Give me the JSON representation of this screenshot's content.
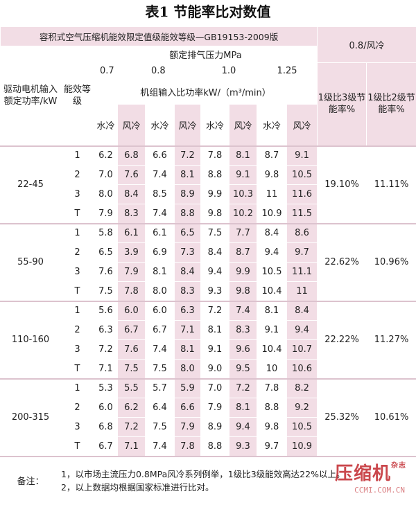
{
  "title": "表1 节能率比对数值",
  "header": {
    "main_caption": "容积式空气压缩机能效限定值级能效等级—GB19153-2009版",
    "motor_col": "驱动电机输入额定功率/kW",
    "grade_col": "能效等级",
    "pressure_caption": "额定排气压力MPa",
    "pressures": [
      "0.7",
      "0.8",
      "1.0",
      "1.25"
    ],
    "power_caption": "机组输入比功率kW/（m³/min）",
    "water": "水冷",
    "air": "风冷",
    "right_caption": "0.8/风冷",
    "ratio1": "1级比3级节能率%",
    "ratio2": "1级比2级节能率%"
  },
  "groups": [
    {
      "range": "22-45",
      "ratio1": "19.10%",
      "ratio2": "11.11%",
      "rows": [
        {
          "grade": "1",
          "v": [
            "6.2",
            "6.8",
            "6.6",
            "7.2",
            "7.8",
            "8.1",
            "8.7",
            "9.1"
          ]
        },
        {
          "grade": "2",
          "v": [
            "7.0",
            "7.6",
            "7.4",
            "8.1",
            "8.8",
            "9.1",
            "9.8",
            "10.5"
          ]
        },
        {
          "grade": "3",
          "v": [
            "8.0",
            "8.4",
            "8.5",
            "8.9",
            "9.9",
            "10.3",
            "11",
            "11.6"
          ]
        },
        {
          "grade": "T",
          "v": [
            "7.9",
            "8.3",
            "7.4",
            "8.8",
            "9.8",
            "10.2",
            "10.9",
            "11.5"
          ]
        }
      ]
    },
    {
      "range": "55-90",
      "ratio1": "22.62%",
      "ratio2": "10.96%",
      "rows": [
        {
          "grade": "1",
          "v": [
            "5.8",
            "6.1",
            "6.1",
            "6.5",
            "7.5",
            "7.7",
            "8.4",
            "8.6"
          ]
        },
        {
          "grade": "2",
          "v": [
            "6.5",
            "3.9",
            "6.9",
            "7.3",
            "8.4",
            "8.7",
            "9.4",
            "9.7"
          ]
        },
        {
          "grade": "3",
          "v": [
            "7.6",
            "7.9",
            "8.1",
            "8.4",
            "9.4",
            "9.9",
            "10.5",
            "11.1"
          ]
        },
        {
          "grade": "T",
          "v": [
            "7.5",
            "7.8",
            "8.0",
            "8.3",
            "9.3",
            "9.8",
            "10.4",
            "11"
          ]
        }
      ]
    },
    {
      "range": "110-160",
      "ratio1": "22.22%",
      "ratio2": "11.27%",
      "rows": [
        {
          "grade": "1",
          "v": [
            "5.6",
            "6.0",
            "6.0",
            "6.3",
            "7.2",
            "7.4",
            "8.1",
            "8.4"
          ]
        },
        {
          "grade": "2",
          "v": [
            "6.3",
            "6.7",
            "6.7",
            "7.1",
            "8.1",
            "8.3",
            "9.1",
            "9.4"
          ]
        },
        {
          "grade": "3",
          "v": [
            "7.2",
            "7.6",
            "7.4",
            "8.1",
            "9.1",
            "9.6",
            "10.4",
            "10.7"
          ]
        },
        {
          "grade": "T",
          "v": [
            "7.1",
            "7.5",
            "7.5",
            "8.0",
            "9.0",
            "9.5",
            "10",
            "10.6"
          ]
        }
      ]
    },
    {
      "range": "200-315",
      "ratio1": "25.32%",
      "ratio2": "10.61%",
      "rows": [
        {
          "grade": "1",
          "v": [
            "5.3",
            "5.5",
            "5.7",
            "5.9",
            "7.0",
            "7.2",
            "7.8",
            "8.2"
          ]
        },
        {
          "grade": "2",
          "v": [
            "6.0",
            "6.2",
            "6.4",
            "6.6",
            "7.9",
            "8.1",
            "8.8",
            "9.2"
          ]
        },
        {
          "grade": "3",
          "v": [
            "6.8",
            "7.2",
            "7.5",
            "7.9",
            "8.9",
            "9.4",
            "9.8",
            "10.5"
          ]
        },
        {
          "grade": "T",
          "v": [
            "6.7",
            "7.1",
            "7.4",
            "7.8",
            "8.8",
            "9.3",
            "9.7",
            "10.9"
          ]
        }
      ]
    }
  ],
  "notes": {
    "label": "备注：",
    "lines": [
      "1，以市场主流压力0.8MPa风冷系列例举，1级比3级能效高达22%以上。",
      "2，以上数据均根据国家标准进行比对。"
    ]
  },
  "brand": {
    "name": "压缩机",
    "sub": "杂志",
    "url": "CCMI.COM.CN"
  }
}
